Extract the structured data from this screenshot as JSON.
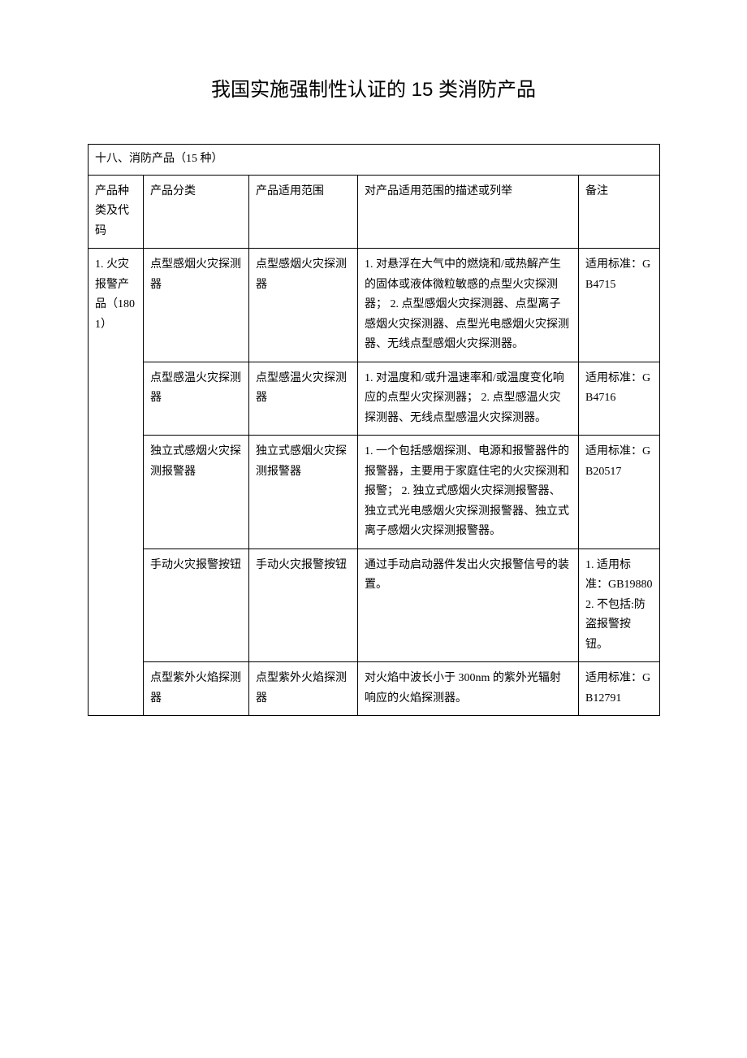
{
  "title": "我国实施强制性认证的 15 类消防产品",
  "section_header": "十八、消防产品（15 种）",
  "table": {
    "columns": {
      "cat_code": "产品种类及代码",
      "classification": "产品分类",
      "scope": "产品适用范围",
      "description": "对产品适用范围的描述或列举",
      "remark": "备注"
    },
    "group": {
      "cat_code": "1. 火灾报警产品（1801）"
    },
    "rows": [
      {
        "classification": "点型感烟火灾探测器",
        "scope": "点型感烟火灾探测器",
        "description": "1. 对悬浮在大气中的燃烧和/或热解产生的固体或液体微粒敏感的点型火灾探测器；\n2. 点型感烟火灾探测器、点型离子感烟火灾探测器、点型光电感烟火灾探测器、无线点型感烟火灾探测器。",
        "remark": "适用标准：GB4715"
      },
      {
        "classification": "点型感温火灾探测器",
        "scope": "点型感温火灾探测器",
        "description": "1. 对温度和/或升温速率和/或温度变化响应的点型火灾探测器；\n2. 点型感温火灾探测器、无线点型感温火灾探测器。",
        "remark": "适用标准：GB4716"
      },
      {
        "classification": "独立式感烟火灾探测报警器",
        "scope": "独立式感烟火灾探测报警器",
        "description": "1. 一个包括感烟探测、电源和报警器件的报警器，主要用于家庭住宅的火灾探测和报警；\n2. 独立式感烟火灾探测报警器、独立式光电感烟火灾探测报警器、独立式离子感烟火灾探测报警器。",
        "remark": "适用标准：GB20517"
      },
      {
        "classification": "手动火灾报警按钮",
        "scope": "手动火灾报警按钮",
        "description": "通过手动启动器件发出火灾报警信号的装置。",
        "remark": "1. 适用标准：GB19880\n2. 不包括:防盗报警按钮。"
      },
      {
        "classification": "点型紫外火焰探测器",
        "scope": "点型紫外火焰探测器",
        "description": "对火焰中波长小于 300nm 的紫外光辐射响应的火焰探测器。",
        "remark": "适用标准：GB12791"
      }
    ]
  },
  "styles": {
    "background_color": "#ffffff",
    "border_color": "#000000",
    "text_color": "#000000",
    "title_fontsize": 24,
    "body_fontsize": 14,
    "line_height": 1.75,
    "col_widths": {
      "cat_code": 68,
      "classification": 130,
      "scope": 134,
      "description": 272,
      "remark": 100
    }
  }
}
